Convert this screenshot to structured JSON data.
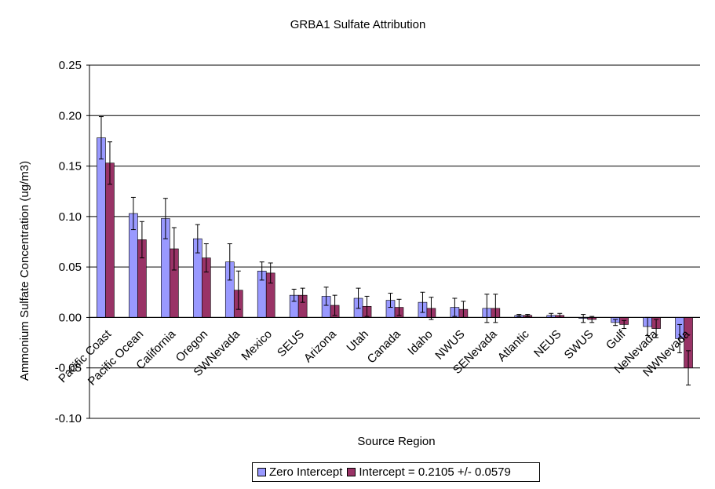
{
  "chart_data": {
    "type": "bar",
    "title": "GRBA1 Sulfate Attribution",
    "xlabel": "Source Region",
    "ylabel": "Ammonium Sulfate Concentration (ug/m3)",
    "ylim": [
      -0.1,
      0.25
    ],
    "yticks": [
      "-0.10",
      "-0.05",
      "0.00",
      "0.05",
      "0.10",
      "0.15",
      "0.20",
      "0.25"
    ],
    "grid": true,
    "legend_position": "bottom",
    "categories": [
      "Pacific Coast",
      "Pacific Ocean",
      "California",
      "Oregon",
      "SWNevada",
      "Mexico",
      "SEUS",
      "Arizona",
      "Utah",
      "Canada",
      "Idaho",
      "NWUS",
      "SENevada",
      "Atlantic",
      "NEUS",
      "SWUS",
      "Gulf",
      "NeNevada",
      "NWNevada"
    ],
    "series": [
      {
        "name": "Zero Intercept",
        "color": "#9999ff",
        "values": [
          0.178,
          0.103,
          0.098,
          0.078,
          0.055,
          0.046,
          0.022,
          0.021,
          0.019,
          0.017,
          0.015,
          0.01,
          0.009,
          0.002,
          0.002,
          -0.001,
          -0.005,
          -0.009,
          -0.021
        ],
        "errors": [
          0.021,
          0.016,
          0.02,
          0.014,
          0.018,
          0.009,
          0.006,
          0.009,
          0.01,
          0.007,
          0.01,
          0.009,
          0.014,
          0.001,
          0.002,
          0.004,
          0.003,
          0.009,
          0.014
        ]
      },
      {
        "name": "Intercept = 0.2105 +/- 0.0579",
        "color": "#993366",
        "values": [
          0.153,
          0.077,
          0.068,
          0.059,
          0.027,
          0.044,
          0.022,
          0.012,
          0.011,
          0.01,
          0.009,
          0.008,
          0.009,
          0.002,
          0.002,
          -0.002,
          -0.007,
          -0.011,
          -0.05
        ],
        "errors": [
          0.021,
          0.018,
          0.021,
          0.014,
          0.019,
          0.01,
          0.007,
          0.01,
          0.01,
          0.008,
          0.011,
          0.008,
          0.014,
          0.001,
          0.002,
          0.003,
          0.004,
          0.009,
          0.017
        ]
      }
    ]
  }
}
